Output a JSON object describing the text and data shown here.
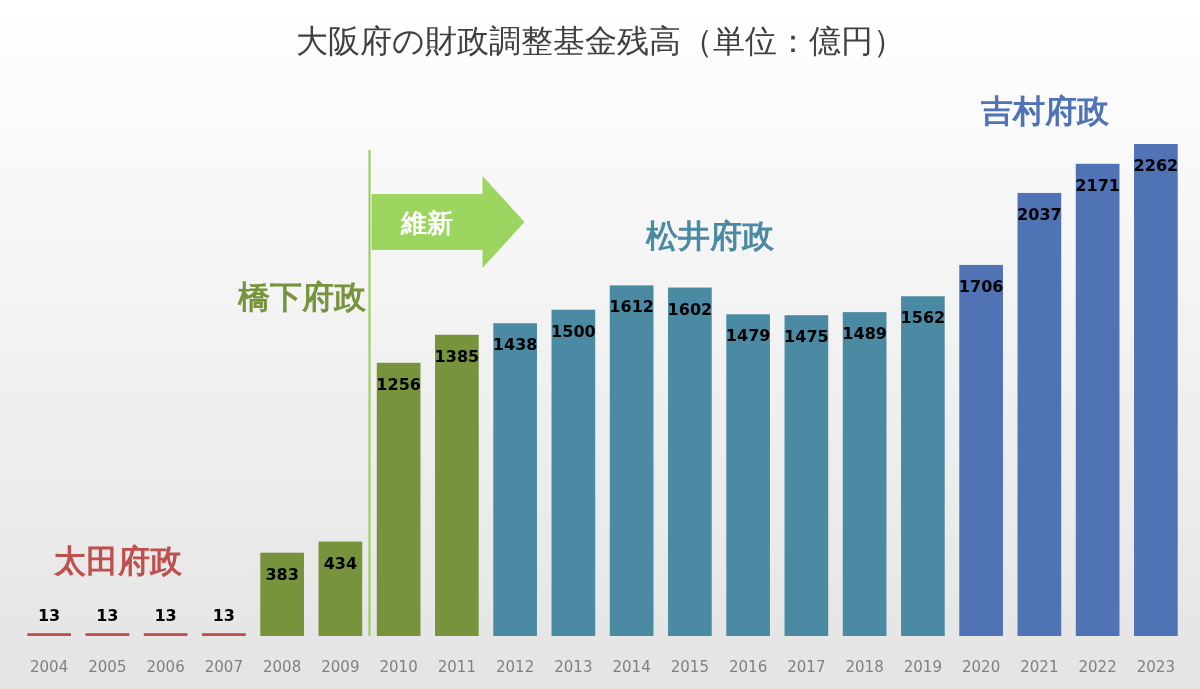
{
  "chart_data": {
    "type": "bar",
    "title": "大阪府の財政調整基金残高（単位：億円）",
    "categories": [
      "2004",
      "2005",
      "2006",
      "2007",
      "2008",
      "2009",
      "2010",
      "2011",
      "2012",
      "2013",
      "2014",
      "2015",
      "2016",
      "2017",
      "2018",
      "2019",
      "2020",
      "2021",
      "2022",
      "2023"
    ],
    "values": [
      13,
      13,
      13,
      13,
      383,
      434,
      1256,
      1385,
      1438,
      1500,
      1612,
      1602,
      1479,
      1475,
      1489,
      1562,
      1706,
      2037,
      2171,
      2262
    ],
    "colors": [
      "#c0504d",
      "#c0504d",
      "#c0504d",
      "#c0504d",
      "#77933c",
      "#77933c",
      "#77933c",
      "#77933c",
      "#4a8ba3",
      "#4a8ba3",
      "#4a8ba3",
      "#4a8ba3",
      "#4a8ba3",
      "#4a8ba3",
      "#4a8ba3",
      "#4a8ba3",
      "#4f73b5",
      "#4f73b5",
      "#4f73b5",
      "#4f73b5"
    ],
    "data_labels": true,
    "tick_labels": "x",
    "ref_lines": [
      {
        "axis": "x",
        "value": "2010",
        "color": "#92d050"
      }
    ],
    "annotations": [
      "太田府政",
      "橋下府政",
      "維新",
      "松井府政",
      "吉村府政"
    ]
  }
}
